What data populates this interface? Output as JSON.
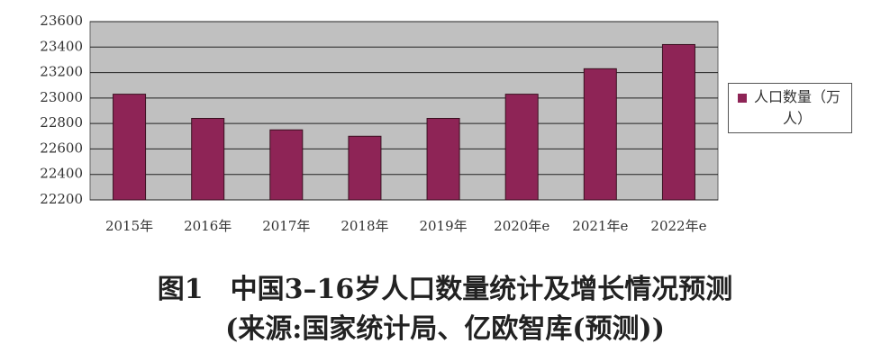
{
  "chart_data": {
    "type": "bar",
    "title": "图1　中国3–16岁人口数量统计及增长情况预测",
    "subtitle": "(来源:国家统计局、亿欧智库(预测))",
    "categories": [
      "2015年",
      "2016年",
      "2017年",
      "2018年",
      "2019年",
      "2020年e",
      "2021年e",
      "2022年e"
    ],
    "series": [
      {
        "name": "人口数量（万人）",
        "color": "#8e2456",
        "values": [
          23030,
          22840,
          22750,
          22700,
          22840,
          23030,
          23230,
          23420
        ]
      }
    ],
    "ylim": [
      22200,
      23600
    ],
    "yticks": [
      22200,
      22400,
      22600,
      22800,
      23000,
      23200,
      23400,
      23600
    ],
    "grid": true
  }
}
